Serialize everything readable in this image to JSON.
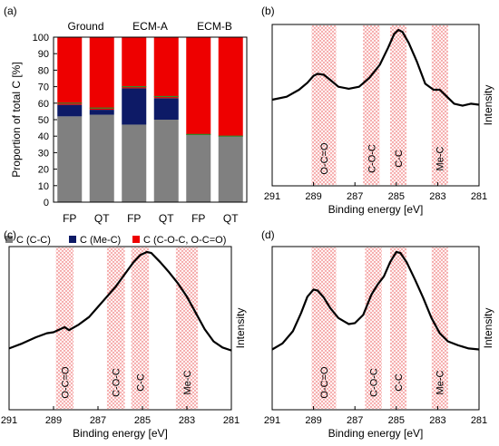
{
  "chart_data": [
    {
      "panel": "(a)",
      "type": "bar",
      "stacked": true,
      "ylabel": "Proportion of total C [%]",
      "ylim": [
        0,
        100
      ],
      "yticks": [
        0,
        10,
        20,
        30,
        40,
        50,
        60,
        70,
        80,
        90,
        100
      ],
      "groups": [
        "Ground",
        "ECM-A",
        "ECM-B"
      ],
      "categories": [
        "FP",
        "QT",
        "FP",
        "QT",
        "FP",
        "QT"
      ],
      "series": [
        {
          "name": "C (C-C)",
          "color": "#808080",
          "values": [
            52,
            53,
            47,
            50,
            41,
            40
          ]
        },
        {
          "name": "C (Me-C)",
          "color": "#0d1a66",
          "values": [
            7,
            3,
            22,
            13,
            0,
            0
          ]
        },
        {
          "name": "C (C-O-C, O-C=O)",
          "color": "#ee0000",
          "values": [
            41,
            44,
            31,
            37,
            59,
            60
          ]
        }
      ],
      "green_line_tops": [
        60,
        57,
        70,
        64,
        41,
        40
      ],
      "legend_position": "bottom"
    },
    {
      "panel": "(b)",
      "type": "line",
      "xlabel": "Binding energy [eV]",
      "ylabel": "Intensity",
      "xlim": [
        291,
        281
      ],
      "xticks": [
        291,
        289,
        287,
        285,
        283,
        281
      ],
      "y_scale": "relative intensity, no printed values",
      "bands": [
        {
          "label": "O-C=O",
          "from": 289.1,
          "to": 287.9
        },
        {
          "label": "C-O-C",
          "from": 286.6,
          "to": 285.8
        },
        {
          "label": "C-C",
          "from": 285.3,
          "to": 284.5
        },
        {
          "label": "Me-C",
          "from": 283.3,
          "to": 282.5
        }
      ],
      "points": [
        [
          291,
          0.3
        ],
        [
          290.3,
          0.33
        ],
        [
          289.7,
          0.4
        ],
        [
          289.3,
          0.47
        ],
        [
          289.0,
          0.54
        ],
        [
          288.8,
          0.56
        ],
        [
          288.5,
          0.55
        ],
        [
          288.2,
          0.5
        ],
        [
          287.8,
          0.43
        ],
        [
          287.3,
          0.41
        ],
        [
          286.8,
          0.43
        ],
        [
          286.3,
          0.52
        ],
        [
          285.8,
          0.65
        ],
        [
          285.4,
          0.82
        ],
        [
          285.1,
          0.96
        ],
        [
          284.9,
          1.0
        ],
        [
          284.7,
          0.98
        ],
        [
          284.4,
          0.87
        ],
        [
          284.0,
          0.68
        ],
        [
          283.6,
          0.46
        ],
        [
          283.2,
          0.4
        ],
        [
          282.9,
          0.4
        ],
        [
          282.6,
          0.34
        ],
        [
          282.2,
          0.26
        ],
        [
          281.8,
          0.24
        ],
        [
          281.4,
          0.26
        ],
        [
          281,
          0.25
        ]
      ]
    },
    {
      "panel": "(c)",
      "type": "line",
      "xlabel": "Binding energy [eV]",
      "ylabel": "Intensity",
      "xlim": [
        291,
        281
      ],
      "xticks": [
        291,
        289,
        287,
        285,
        283,
        281
      ],
      "y_scale": "relative intensity, no printed values",
      "bands": [
        {
          "label": "O-C=O",
          "from": 288.9,
          "to": 288.1
        },
        {
          "label": "C-O-C",
          "from": 286.6,
          "to": 285.8
        },
        {
          "label": "C-C",
          "from": 285.5,
          "to": 284.7
        },
        {
          "label": "Me-C",
          "from": 283.5,
          "to": 282.5
        }
      ],
      "points": [
        [
          291,
          0.05
        ],
        [
          290.4,
          0.1
        ],
        [
          289.8,
          0.16
        ],
        [
          289.3,
          0.2
        ],
        [
          289.0,
          0.21
        ],
        [
          288.7,
          0.24
        ],
        [
          288.5,
          0.26
        ],
        [
          288.3,
          0.23
        ],
        [
          287.9,
          0.28
        ],
        [
          287.4,
          0.36
        ],
        [
          287.0,
          0.46
        ],
        [
          286.6,
          0.56
        ],
        [
          286.2,
          0.66
        ],
        [
          285.8,
          0.78
        ],
        [
          285.4,
          0.9
        ],
        [
          285.1,
          0.97
        ],
        [
          284.8,
          1.0
        ],
        [
          284.6,
          0.99
        ],
        [
          284.2,
          0.9
        ],
        [
          283.8,
          0.8
        ],
        [
          283.4,
          0.69
        ],
        [
          283.0,
          0.56
        ],
        [
          282.6,
          0.4
        ],
        [
          282.2,
          0.24
        ],
        [
          281.8,
          0.12
        ],
        [
          281.4,
          0.06
        ],
        [
          281,
          0.03
        ]
      ]
    },
    {
      "panel": "(d)",
      "type": "line",
      "xlabel": "Binding energy [eV]",
      "ylabel": "Intensity",
      "xlim": [
        291,
        281
      ],
      "xticks": [
        291,
        289,
        287,
        285,
        283,
        281
      ],
      "y_scale": "relative intensity, no printed values",
      "bands": [
        {
          "label": "O-C=O",
          "from": 289.1,
          "to": 287.9
        },
        {
          "label": "C-O-C",
          "from": 286.5,
          "to": 285.7
        },
        {
          "label": "C-C",
          "from": 285.3,
          "to": 284.5
        },
        {
          "label": "Me-C",
          "from": 283.3,
          "to": 282.5
        }
      ],
      "points": [
        [
          291,
          0.04
        ],
        [
          290.5,
          0.1
        ],
        [
          290.0,
          0.22
        ],
        [
          289.6,
          0.4
        ],
        [
          289.3,
          0.56
        ],
        [
          289.0,
          0.63
        ],
        [
          288.8,
          0.62
        ],
        [
          288.5,
          0.55
        ],
        [
          288.2,
          0.45
        ],
        [
          287.8,
          0.35
        ],
        [
          287.3,
          0.29
        ],
        [
          287.0,
          0.3
        ],
        [
          286.6,
          0.38
        ],
        [
          286.2,
          0.58
        ],
        [
          285.9,
          0.68
        ],
        [
          285.6,
          0.76
        ],
        [
          285.3,
          0.9
        ],
        [
          285.0,
          1.0
        ],
        [
          284.8,
          0.99
        ],
        [
          284.5,
          0.9
        ],
        [
          284.1,
          0.73
        ],
        [
          283.7,
          0.55
        ],
        [
          283.3,
          0.35
        ],
        [
          282.9,
          0.2
        ],
        [
          282.5,
          0.12
        ],
        [
          282.0,
          0.08
        ],
        [
          281.5,
          0.05
        ],
        [
          281,
          0.04
        ]
      ]
    }
  ]
}
